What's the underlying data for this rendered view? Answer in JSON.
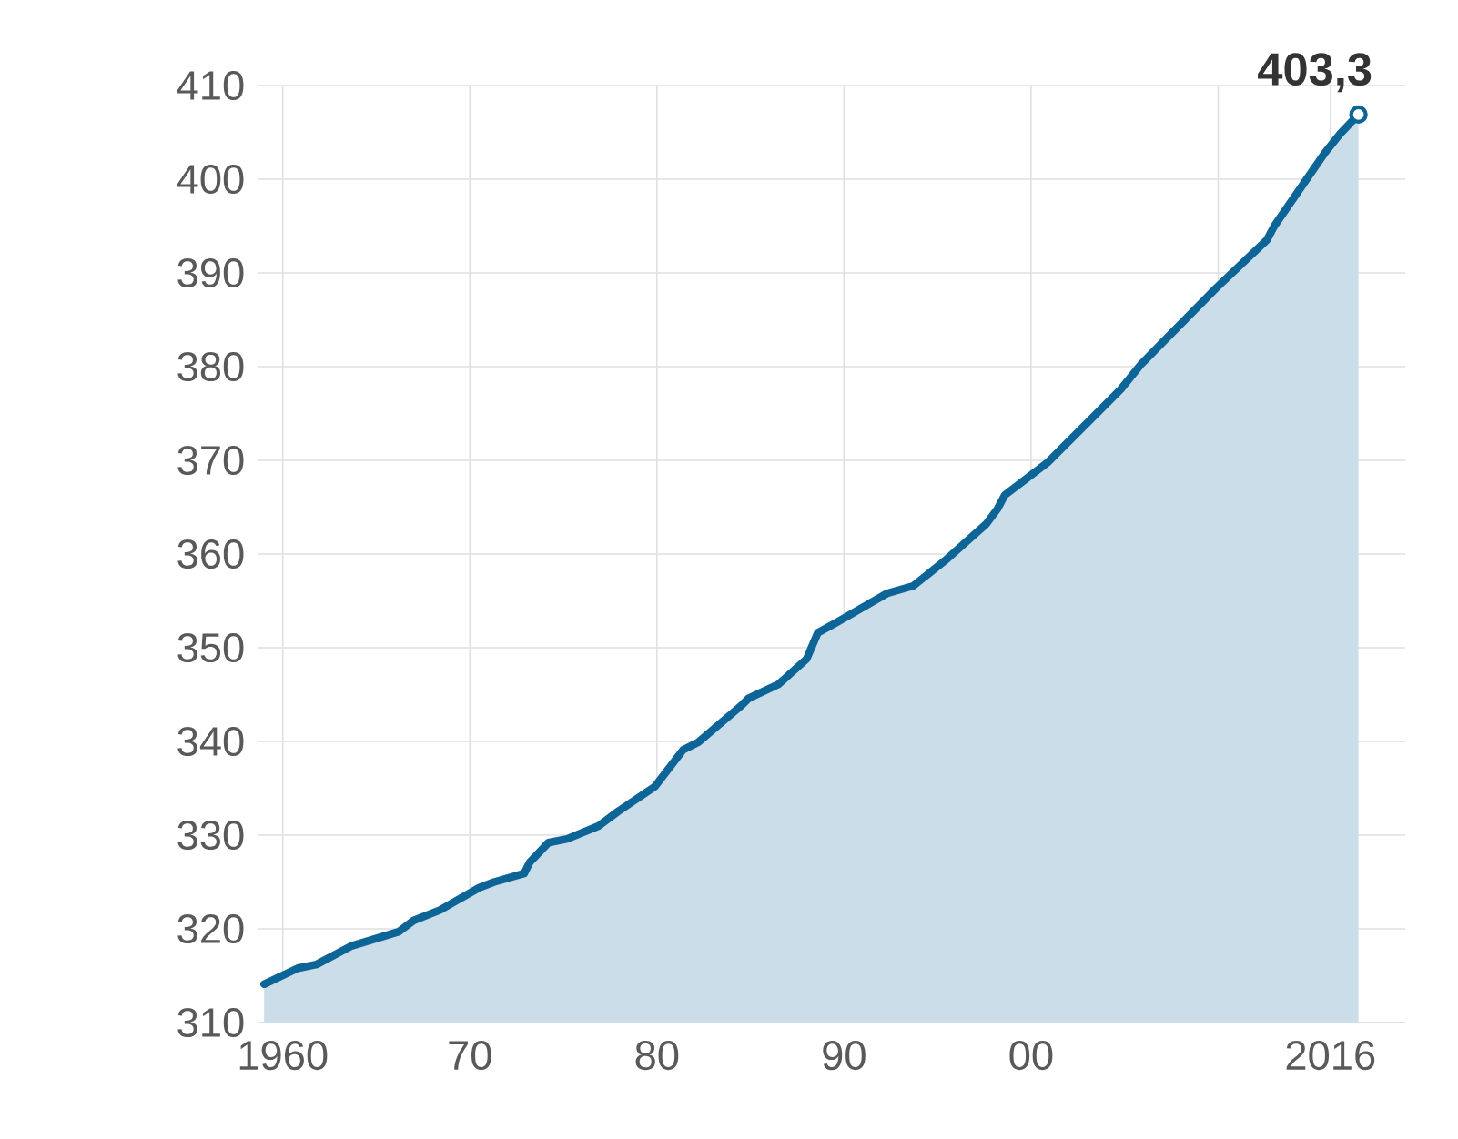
{
  "chart_data": {
    "type": "area",
    "x": [
      1959.0,
      1960.8,
      1961.8,
      1963.7,
      1966.2,
      1967.0,
      1968.4,
      1970.5,
      1971.3,
      1972.9,
      1973.2,
      1974.2,
      1975.2,
      1976.9,
      1977.9,
      1979.9,
      1981.4,
      1982.2,
      1984.5,
      1984.9,
      1986.5,
      1988.0,
      1988.6,
      1989.6,
      1992.3,
      1993.7,
      1995.4,
      1997.6,
      1998.2,
      1998.6,
      2000.9,
      2003.6,
      2004.8,
      2005.9,
      2009.9,
      2012.6,
      2013.0,
      2015.7,
      2016.5,
      2017.5
    ],
    "values": [
      314.1,
      315.8,
      316.2,
      318.2,
      319.7,
      320.9,
      322.0,
      324.4,
      325.0,
      325.9,
      327.1,
      329.2,
      329.6,
      331.0,
      332.5,
      335.2,
      339.1,
      339.9,
      343.8,
      344.6,
      346.1,
      348.8,
      351.6,
      352.7,
      355.8,
      356.6,
      359.3,
      363.2,
      364.8,
      366.3,
      369.8,
      375.2,
      377.6,
      380.3,
      388.4,
      393.5,
      395.0,
      402.8,
      404.8,
      406.9
    ],
    "color": "#0d6497",
    "xlim": [
      1958.7,
      2020.0
    ],
    "ylim": [
      310,
      410
    ],
    "xticks": [
      {
        "value": 1960,
        "label": "1960"
      },
      {
        "value": 1970,
        "label": "70"
      },
      {
        "value": 1980,
        "label": "80"
      },
      {
        "value": 1990,
        "label": "90"
      },
      {
        "value": 2000,
        "label": "00"
      },
      {
        "value": 2010,
        "label": null
      },
      {
        "value": 2016,
        "label": "2016"
      }
    ],
    "yticks": [
      310,
      320,
      330,
      340,
      350,
      360,
      370,
      380,
      390,
      400,
      410
    ],
    "grid": true,
    "annotations": [
      {
        "text": "403,3",
        "x": 2017.5,
        "y": 406.9
      }
    ]
  }
}
